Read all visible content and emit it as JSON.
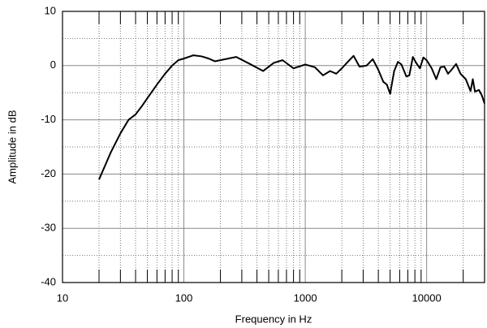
{
  "chart_data": {
    "type": "line",
    "xlabel": "Frequency in Hz",
    "ylabel": "Amplitude in dB",
    "xscale": "log",
    "xlim": [
      10,
      30000
    ],
    "ylim": [
      -40,
      10
    ],
    "xticks": [
      10,
      100,
      1000,
      10000
    ],
    "yticks": [
      -40,
      -30,
      -20,
      -10,
      0,
      10
    ],
    "xminorticks": [
      20,
      30,
      40,
      50,
      60,
      70,
      80,
      90,
      200,
      300,
      400,
      500,
      600,
      700,
      800,
      900,
      2000,
      3000,
      4000,
      5000,
      6000,
      7000,
      8000,
      9000,
      20000
    ],
    "yminorticks": [
      -35,
      -25,
      -15,
      -5,
      5
    ],
    "grid": true,
    "x": [
      20,
      25,
      30,
      35,
      40,
      45,
      50,
      60,
      70,
      80,
      90,
      100,
      120,
      140,
      160,
      180,
      270,
      350,
      450,
      550,
      650,
      800,
      1000,
      1200,
      1400,
      1600,
      1800,
      2000,
      2200,
      2500,
      2800,
      3200,
      3600,
      4000,
      4400,
      4700,
      5000,
      5400,
      5800,
      6200,
      6800,
      7200,
      7700,
      8200,
      8800,
      9400,
      10000,
      11000,
      12000,
      13000,
      14000,
      15000,
      16000,
      17500,
      19000,
      21000,
      23000,
      24000,
      25000,
      27000,
      28500,
      30000
    ],
    "series": [
      {
        "color": "#000000",
        "values": [
          -21,
          -16,
          -12.5,
          -10,
          -9,
          -7.5,
          -6,
          -3.5,
          -1.5,
          0,
          1,
          1.3,
          1.9,
          1.7,
          1.3,
          0.8,
          1.6,
          0.3,
          -1,
          0.5,
          1,
          -0.5,
          0.2,
          -0.3,
          -1.8,
          -1,
          -1.5,
          -0.5,
          0.5,
          1.8,
          -0.2,
          0,
          1.2,
          -0.8,
          -3,
          -3.5,
          -5.2,
          -1,
          0.7,
          0.2,
          -2,
          -1.8,
          1.6,
          0.5,
          -0.5,
          1.5,
          1,
          -0.5,
          -2.5,
          -0.3,
          -0.2,
          -1.5,
          -0.8,
          0.3,
          -1.5,
          -2.5,
          -4.7,
          -2.5,
          -4.8,
          -4.5,
          -5.5,
          -7
        ]
      }
    ]
  }
}
